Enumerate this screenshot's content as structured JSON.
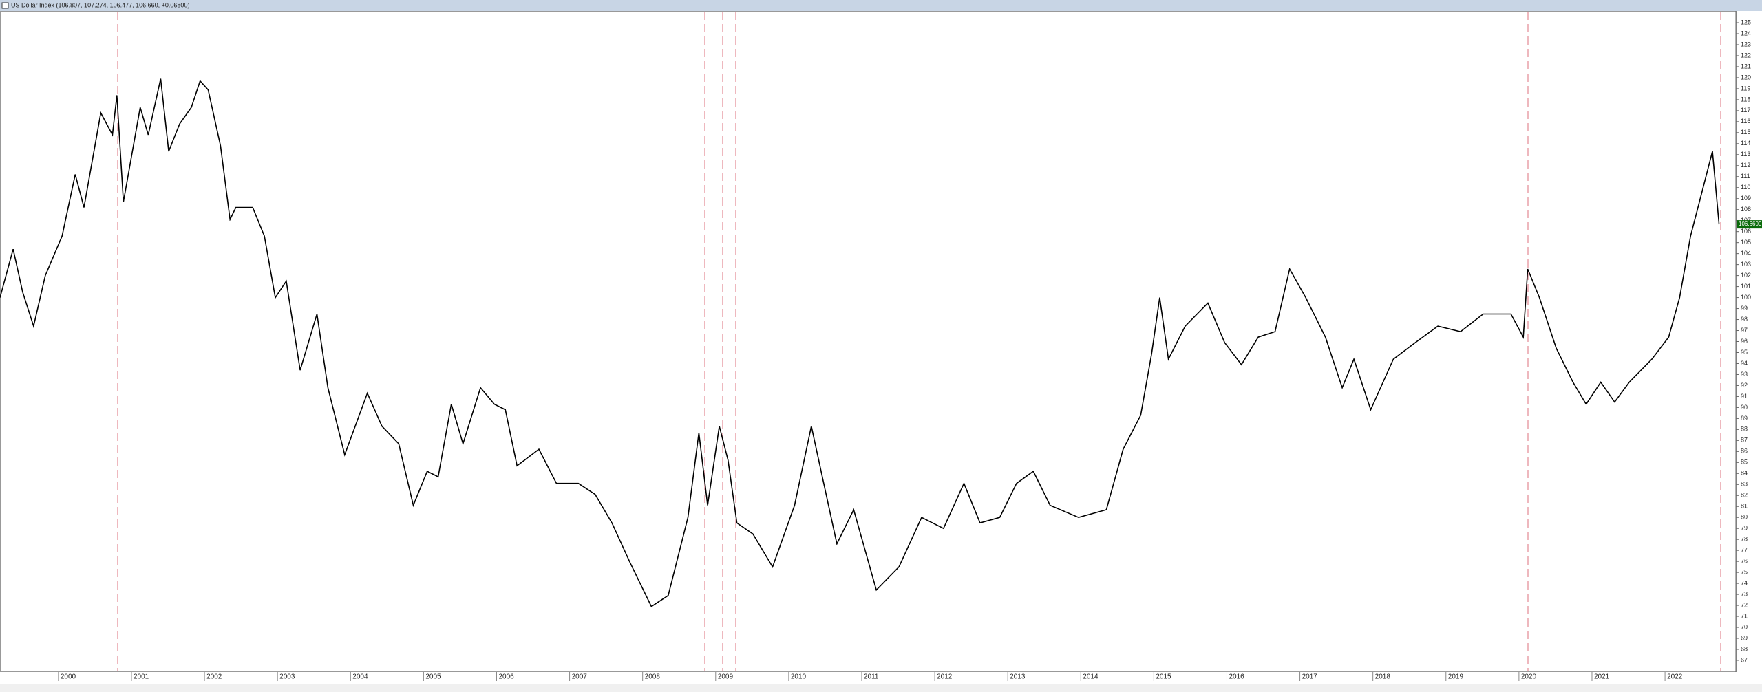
{
  "chart_data": {
    "type": "line",
    "title": "US Dollar Index (106.807, 107.274, 106.477, 106.660, +0.06800)",
    "color": "#000000",
    "x": [
      1999.2,
      1999.38,
      1999.51,
      1999.66,
      1999.82,
      2000.05,
      2000.23,
      2000.35,
      2000.58,
      2000.74,
      2000.8,
      2000.89,
      2001.12,
      2001.23,
      2001.4,
      2001.51,
      2001.66,
      2001.82,
      2001.94,
      2002.05,
      2002.22,
      2002.35,
      2002.43,
      2002.66,
      2002.82,
      2002.97,
      2003.12,
      2003.31,
      2003.54,
      2003.69,
      2003.92,
      2004.23,
      2004.43,
      2004.66,
      2004.86,
      2005.05,
      2005.2,
      2005.38,
      2005.54,
      2005.78,
      2005.97,
      2006.12,
      2006.28,
      2006.58,
      2006.82,
      2007.12,
      2007.35,
      2007.58,
      2007.82,
      2008.12,
      2008.35,
      2008.62,
      2008.77,
      2008.89,
      2009.05,
      2009.17,
      2009.29,
      2009.51,
      2009.78,
      2010.08,
      2010.31,
      2010.48,
      2010.66,
      2010.89,
      2011.2,
      2011.51,
      2011.82,
      2012.12,
      2012.4,
      2012.62,
      2012.89,
      2013.12,
      2013.35,
      2013.58,
      2013.97,
      2014.35,
      2014.58,
      2014.82,
      2014.97,
      2015.08,
      2015.2,
      2015.43,
      2015.74,
      2015.97,
      2016.2,
      2016.43,
      2016.66,
      2016.86,
      2017.08,
      2017.35,
      2017.58,
      2017.74,
      2017.97,
      2018.28,
      2018.58,
      2018.89,
      2019.2,
      2019.51,
      2019.89,
      2020.06,
      2020.12,
      2020.28,
      2020.51,
      2020.74,
      2020.92,
      2021.12,
      2021.31,
      2021.51,
      2021.82,
      2022.05,
      2022.2,
      2022.35,
      2022.51,
      2022.65,
      2022.74
    ],
    "values": [
      100,
      104.4,
      100.5,
      97.4,
      102,
      105.6,
      111.2,
      108.2,
      116.8,
      114.8,
      118.4,
      108.7,
      117.3,
      114.8,
      119.9,
      113.3,
      115.8,
      117.3,
      119.7,
      118.9,
      113.8,
      107.1,
      108.2,
      108.2,
      105.6,
      100,
      101.5,
      93.4,
      98.5,
      91.8,
      85.7,
      91.3,
      88.3,
      86.7,
      81.1,
      84.2,
      83.7,
      90.3,
      86.7,
      91.8,
      90.3,
      89.8,
      84.7,
      86.2,
      83.1,
      83.1,
      82.1,
      79.5,
      76,
      71.9,
      72.9,
      80,
      87.7,
      81.1,
      88.3,
      85.2,
      79.5,
      78.5,
      75.5,
      81.1,
      88.3,
      83.1,
      77.6,
      80.7,
      73.4,
      75.5,
      80,
      79,
      83.1,
      79.5,
      80,
      83.1,
      84.2,
      81.1,
      80,
      80.7,
      86.2,
      89.3,
      94.9,
      100,
      94.4,
      97.4,
      99.5,
      95.9,
      93.9,
      96.4,
      96.9,
      102.6,
      100,
      96.4,
      91.8,
      94.4,
      89.8,
      94.4,
      95.9,
      97.4,
      96.9,
      98.5,
      98.5,
      96.4,
      102.6,
      100,
      95.4,
      92.3,
      90.3,
      92.3,
      90.5,
      92.3,
      94.4,
      96.4,
      100,
      105.6,
      109.7,
      113.3,
      106.66
    ],
    "last_label": {
      "value": 106.66,
      "label": "106.6600"
    },
    "xlim": [
      1999.2,
      2022.97
    ],
    "xticks": [
      2000,
      2001,
      2002,
      2003,
      2004,
      2005,
      2006,
      2007,
      2008,
      2009,
      2010,
      2011,
      2012,
      2013,
      2014,
      2015,
      2016,
      2017,
      2018,
      2019,
      2020,
      2021,
      2022
    ],
    "ylim": [
      67,
      125
    ],
    "yticks": [
      67,
      68,
      69,
      70,
      71,
      72,
      73,
      74,
      75,
      76,
      77,
      78,
      79,
      80,
      81,
      82,
      83,
      84,
      85,
      86,
      87,
      88,
      89,
      90,
      91,
      92,
      93,
      94,
      95,
      96,
      97,
      98,
      99,
      100,
      101,
      102,
      103,
      104,
      105,
      106,
      107,
      108,
      109,
      110,
      111,
      112,
      113,
      114,
      115,
      116,
      117,
      118,
      119,
      120,
      121,
      122,
      123,
      124,
      125
    ],
    "grid": false
  }
}
